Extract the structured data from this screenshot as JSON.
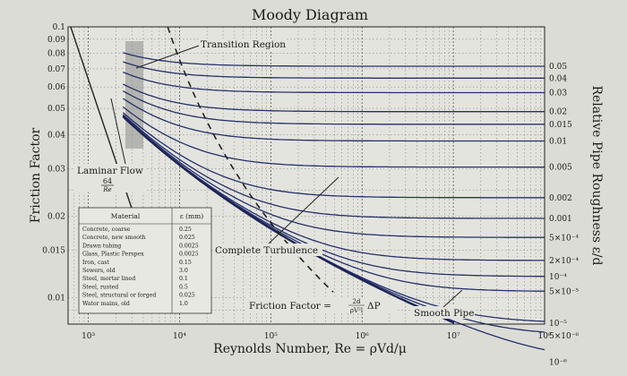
{
  "chart_data": {
    "type": "line",
    "title": "Moody Diagram",
    "xlabel": "Reynolds Number, Re = ρVd/μ",
    "ylabel": "Friction Factor",
    "y2label": "Relative Pipe Roughness ε/d",
    "x_scale": "log",
    "y_scale": "log",
    "xlim": [
      600,
      100000000
    ],
    "ylim": [
      0.008,
      0.1
    ],
    "x_ticks": [
      "10³",
      "10⁴",
      "10⁵",
      "10⁶",
      "10⁷",
      "10⁸"
    ],
    "y_ticks": [
      "0.1",
      "0.09",
      "0.08",
      "0.07",
      "0.06",
      "0.05",
      "0.04",
      "0.03",
      "0.02",
      "0.015",
      "0.01"
    ],
    "roughness_labels": [
      "0.05",
      "0.04",
      "0.03",
      "0.02",
      "0.015",
      "0.01",
      "0.005",
      "0.002",
      "0.001",
      "5×10⁻⁴",
      "2×10⁻⁴",
      "10⁻⁴",
      "5×10⁻⁵",
      "10⁻⁵",
      "5×10⁻⁶",
      "10⁻⁶"
    ],
    "roughness_values": [
      0.05,
      0.04,
      0.03,
      0.02,
      0.015,
      0.01,
      0.005,
      0.002,
      0.001,
      0.0005,
      0.0002,
      0.0001,
      5e-05,
      1e-05,
      5e-06,
      1e-06
    ],
    "laminar_flow": {
      "label": "Laminar Flow",
      "formula_num": "64",
      "formula_den": "Re"
    },
    "annotations": {
      "transition": "Transition Region",
      "complete_turbulence": "Complete Turbulence",
      "smooth_pipe": "Smooth Pipe",
      "friction_factor_prefix": "Friction Factor = ",
      "friction_factor_fraction_num": "2d",
      "friction_factor_fraction_den": "ρV²l",
      "friction_factor_suffix": "ΔP"
    },
    "material_table": {
      "header_material": "Material",
      "header_eps": "ε (mm)",
      "rows": [
        {
          "material": "Concrete, coarse",
          "eps": "0.25"
        },
        {
          "material": "Concrete, new smooth",
          "eps": "0.025"
        },
        {
          "material": "Drawn tubing",
          "eps": "0.0025"
        },
        {
          "material": "Glass, Plastic Perspex",
          "eps": "0.0025"
        },
        {
          "material": "Iron, cast",
          "eps": "0.15"
        },
        {
          "material": "Sewers, old",
          "eps": "3.0"
        },
        {
          "material": "Steel, mortar lined",
          "eps": "0.1"
        },
        {
          "material": "Steel, rusted",
          "eps": "0.5"
        },
        {
          "material": "Steel, structural or forged",
          "eps": "0.025"
        },
        {
          "material": "Water mains, old",
          "eps": "1.0"
        }
      ]
    },
    "grid": true
  }
}
